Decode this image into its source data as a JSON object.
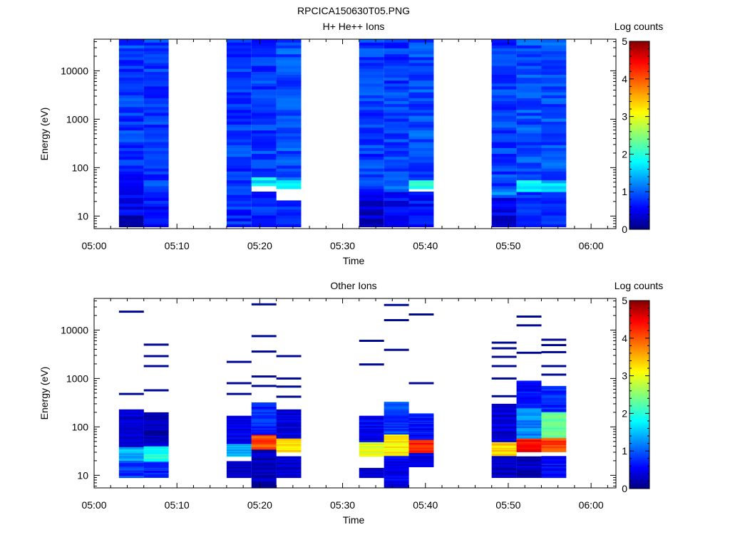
{
  "figure": {
    "title": "RPCICA150630T05.PNG"
  },
  "chart_data": [
    {
      "type": "heatmap",
      "title": "H+ He++ Ions",
      "xlabel": "Time",
      "ylabel": "Energy (eV)",
      "xlim": [
        "05:00",
        "06:03"
      ],
      "ylim": [
        5.5,
        45000
      ],
      "yscale": "log",
      "x_ticks": [
        "05:00",
        "05:10",
        "05:20",
        "05:30",
        "05:40",
        "05:50",
        "06:00"
      ],
      "y_ticks": [
        "10",
        "100",
        "1000",
        "10000"
      ],
      "colorbar": {
        "label": "Log counts",
        "range": [
          0,
          5
        ],
        "ticks": [
          "0",
          "1",
          "2",
          "3",
          "4",
          "5"
        ]
      },
      "columns": [
        {
          "start": "05:03",
          "end": "05:06",
          "energy_min": 6,
          "energy_max": 45000,
          "bands": [
            {
              "e_from": 6,
              "e_to": 10,
              "log_counts": 0.3
            },
            {
              "e_from": 10,
              "e_to": 80,
              "log_counts": 0.6
            },
            {
              "e_from": 80,
              "e_to": 45000,
              "log_counts": 0.9
            }
          ]
        },
        {
          "start": "05:06",
          "end": "05:09",
          "energy_min": 6,
          "energy_max": 45000,
          "bands": [
            {
              "e_from": 6,
              "e_to": 30,
              "log_counts": 0.7
            },
            {
              "e_from": 30,
              "e_to": 45000,
              "log_counts": 0.9
            }
          ]
        },
        {
          "start": "05:16",
          "end": "05:19",
          "energy_min": 6,
          "energy_max": 45000,
          "bands": [
            {
              "e_from": 6,
              "e_to": 30,
              "log_counts": 0.8
            },
            {
              "e_from": 30,
              "e_to": 45000,
              "log_counts": 0.9
            }
          ]
        },
        {
          "start": "05:19",
          "end": "05:22",
          "energy_min": 6,
          "energy_max": 45000,
          "bands": [
            {
              "e_from": 6,
              "e_to": 30,
              "log_counts": 0.8
            },
            {
              "e_from": 40,
              "e_to": 60,
              "log_counts": 1.8
            },
            {
              "e_from": 60,
              "e_to": 45000,
              "log_counts": 0.9
            }
          ]
        },
        {
          "start": "05:22",
          "end": "05:25",
          "energy_min": 6,
          "energy_max": 45000,
          "bands": [
            {
              "e_from": 6,
              "e_to": 20,
              "log_counts": 0.8
            },
            {
              "e_from": 35,
              "e_to": 55,
              "log_counts": 1.7
            },
            {
              "e_from": 55,
              "e_to": 45000,
              "log_counts": 1.0
            }
          ]
        },
        {
          "start": "05:32",
          "end": "05:35",
          "energy_min": 6,
          "energy_max": 45000,
          "bands": [
            {
              "e_from": 6,
              "e_to": 30,
              "log_counts": 0.4
            },
            {
              "e_from": 30,
              "e_to": 45000,
              "log_counts": 0.9
            }
          ]
        },
        {
          "start": "05:35",
          "end": "05:38",
          "energy_min": 6,
          "energy_max": 45000,
          "bands": [
            {
              "e_from": 6,
              "e_to": 30,
              "log_counts": 0.6
            },
            {
              "e_from": 30,
              "e_to": 60,
              "log_counts": 1.2
            },
            {
              "e_from": 60,
              "e_to": 45000,
              "log_counts": 0.9
            }
          ]
        },
        {
          "start": "05:38",
          "end": "05:41",
          "energy_min": 6,
          "energy_max": 45000,
          "bands": [
            {
              "e_from": 6,
              "e_to": 30,
              "log_counts": 0.7
            },
            {
              "e_from": 35,
              "e_to": 55,
              "log_counts": 2.0
            },
            {
              "e_from": 55,
              "e_to": 45000,
              "log_counts": 1.0
            }
          ]
        },
        {
          "start": "05:48",
          "end": "05:51",
          "energy_min": 6,
          "energy_max": 45000,
          "bands": [
            {
              "e_from": 6,
              "e_to": 25,
              "log_counts": 0.5
            },
            {
              "e_from": 25,
              "e_to": 40,
              "log_counts": 1.2
            },
            {
              "e_from": 40,
              "e_to": 45000,
              "log_counts": 0.9
            }
          ]
        },
        {
          "start": "05:51",
          "end": "05:54",
          "energy_min": 6,
          "energy_max": 45000,
          "bands": [
            {
              "e_from": 6,
              "e_to": 30,
              "log_counts": 0.8
            },
            {
              "e_from": 30,
              "e_to": 55,
              "log_counts": 1.8
            },
            {
              "e_from": 55,
              "e_to": 45000,
              "log_counts": 1.0
            }
          ]
        },
        {
          "start": "05:54",
          "end": "05:57",
          "energy_min": 6,
          "energy_max": 45000,
          "bands": [
            {
              "e_from": 6,
              "e_to": 30,
              "log_counts": 0.8
            },
            {
              "e_from": 30,
              "e_to": 55,
              "log_counts": 1.6
            },
            {
              "e_from": 55,
              "e_to": 45000,
              "log_counts": 1.0
            }
          ]
        }
      ]
    },
    {
      "type": "heatmap",
      "title": "Other Ions",
      "xlabel": "Time",
      "ylabel": "Energy (eV)",
      "xlim": [
        "05:00",
        "06:03"
      ],
      "ylim": [
        5.5,
        45000
      ],
      "yscale": "log",
      "x_ticks": [
        "05:00",
        "05:10",
        "05:20",
        "05:30",
        "05:40",
        "05:50",
        "06:00"
      ],
      "y_ticks": [
        "10",
        "100",
        "1000",
        "10000"
      ],
      "colorbar": {
        "label": "Log counts",
        "range": [
          0,
          5
        ],
        "ticks": [
          "0",
          "1",
          "2",
          "3",
          "4",
          "5"
        ]
      },
      "columns": [
        {
          "start": "05:03",
          "end": "05:06",
          "energy_min": 9,
          "energy_max": 230,
          "bands": [
            {
              "e_from": 9,
              "e_to": 20,
              "log_counts": 0.9
            },
            {
              "e_from": 20,
              "e_to": 40,
              "log_counts": 1.5
            },
            {
              "e_from": 40,
              "e_to": 230,
              "log_counts": 0.4
            }
          ],
          "lines_eV": [
            24000,
            480
          ]
        },
        {
          "start": "05:06",
          "end": "05:09",
          "energy_min": 9,
          "energy_max": 200,
          "bands": [
            {
              "e_from": 9,
              "e_to": 20,
              "log_counts": 0.8
            },
            {
              "e_from": 20,
              "e_to": 40,
              "log_counts": 2.0
            },
            {
              "e_from": 40,
              "e_to": 200,
              "log_counts": 0.3
            }
          ],
          "lines_eV": [
            5000,
            2900,
            1800,
            570
          ]
        },
        {
          "start": "05:16",
          "end": "05:19",
          "energy_min": 9,
          "energy_max": 170,
          "bands": [
            {
              "e_from": 9,
              "e_to": 20,
              "log_counts": 0.3
            },
            {
              "e_from": 25,
              "e_to": 45,
              "log_counts": 1.5
            },
            {
              "e_from": 45,
              "e_to": 170,
              "log_counts": 0.5
            }
          ],
          "lines_eV": [
            2200,
            800,
            480
          ]
        },
        {
          "start": "05:19",
          "end": "05:22",
          "energy_min": 5.5,
          "energy_max": 320,
          "bands": [
            {
              "e_from": 5.5,
              "e_to": 35,
              "log_counts": 0.3
            },
            {
              "e_from": 35,
              "e_to": 70,
              "log_counts": 4.0
            },
            {
              "e_from": 70,
              "e_to": 320,
              "log_counts": 0.8
            }
          ],
          "lines_eV": [
            34000,
            7500,
            3600,
            1100,
            700
          ]
        },
        {
          "start": "05:22",
          "end": "05:25",
          "energy_min": 9,
          "energy_max": 230,
          "bands": [
            {
              "e_from": 9,
              "e_to": 25,
              "log_counts": 0.4
            },
            {
              "e_from": 30,
              "e_to": 60,
              "log_counts": 3.3
            },
            {
              "e_from": 60,
              "e_to": 230,
              "log_counts": 0.5
            }
          ],
          "lines_eV": [
            2900,
            1000,
            680,
            420
          ]
        },
        {
          "start": "05:32",
          "end": "05:35",
          "energy_min": 9,
          "energy_max": 170,
          "bands": [
            {
              "e_from": 9,
              "e_to": 14,
              "log_counts": 0.3
            },
            {
              "e_from": 25,
              "e_to": 50,
              "log_counts": 3.0
            },
            {
              "e_from": 50,
              "e_to": 170,
              "log_counts": 0.6
            }
          ],
          "lines_eV": [
            6000,
            1950
          ]
        },
        {
          "start": "05:35",
          "end": "05:38",
          "energy_min": 5.5,
          "energy_max": 330,
          "bands": [
            {
              "e_from": 5.5,
              "e_to": 25,
              "log_counts": 0.6
            },
            {
              "e_from": 25,
              "e_to": 70,
              "log_counts": 3.2
            },
            {
              "e_from": 70,
              "e_to": 330,
              "log_counts": 0.9
            }
          ],
          "lines_eV": [
            33000,
            16000,
            3900
          ]
        },
        {
          "start": "05:38",
          "end": "05:41",
          "energy_min": 15,
          "energy_max": 190,
          "bands": [
            {
              "e_from": 15,
              "e_to": 30,
              "log_counts": 0.5
            },
            {
              "e_from": 30,
              "e_to": 55,
              "log_counts": 4.2
            },
            {
              "e_from": 55,
              "e_to": 190,
              "log_counts": 0.7
            }
          ],
          "lines_eV": [
            21000,
            800
          ]
        },
        {
          "start": "05:48",
          "end": "05:51",
          "energy_min": 9,
          "energy_max": 300,
          "bands": [
            {
              "e_from": 9,
              "e_to": 25,
              "log_counts": 0.3
            },
            {
              "e_from": 25,
              "e_to": 50,
              "log_counts": 3.3
            },
            {
              "e_from": 50,
              "e_to": 300,
              "log_counts": 0.4
            }
          ],
          "lines_eV": [
            5500,
            4200,
            2800,
            1800,
            1000,
            430
          ]
        },
        {
          "start": "05:51",
          "end": "05:54",
          "energy_min": 9,
          "energy_max": 900,
          "bands": [
            {
              "e_from": 9,
              "e_to": 25,
              "log_counts": 0.3
            },
            {
              "e_from": 30,
              "e_to": 60,
              "log_counts": 4.3
            },
            {
              "e_from": 60,
              "e_to": 250,
              "log_counts": 1.3
            },
            {
              "e_from": 250,
              "e_to": 900,
              "log_counts": 0.6
            }
          ],
          "lines_eV": [
            19000,
            12500,
            3400
          ]
        },
        {
          "start": "05:54",
          "end": "05:57",
          "energy_min": 9,
          "energy_max": 700,
          "bands": [
            {
              "e_from": 9,
              "e_to": 25,
              "log_counts": 0.6
            },
            {
              "e_from": 30,
              "e_to": 60,
              "log_counts": 4.0
            },
            {
              "e_from": 60,
              "e_to": 200,
              "log_counts": 2.3
            },
            {
              "e_from": 200,
              "e_to": 700,
              "log_counts": 0.8
            }
          ],
          "lines_eV": [
            6300,
            4900,
            3500,
            1800,
            1200
          ]
        }
      ]
    }
  ]
}
